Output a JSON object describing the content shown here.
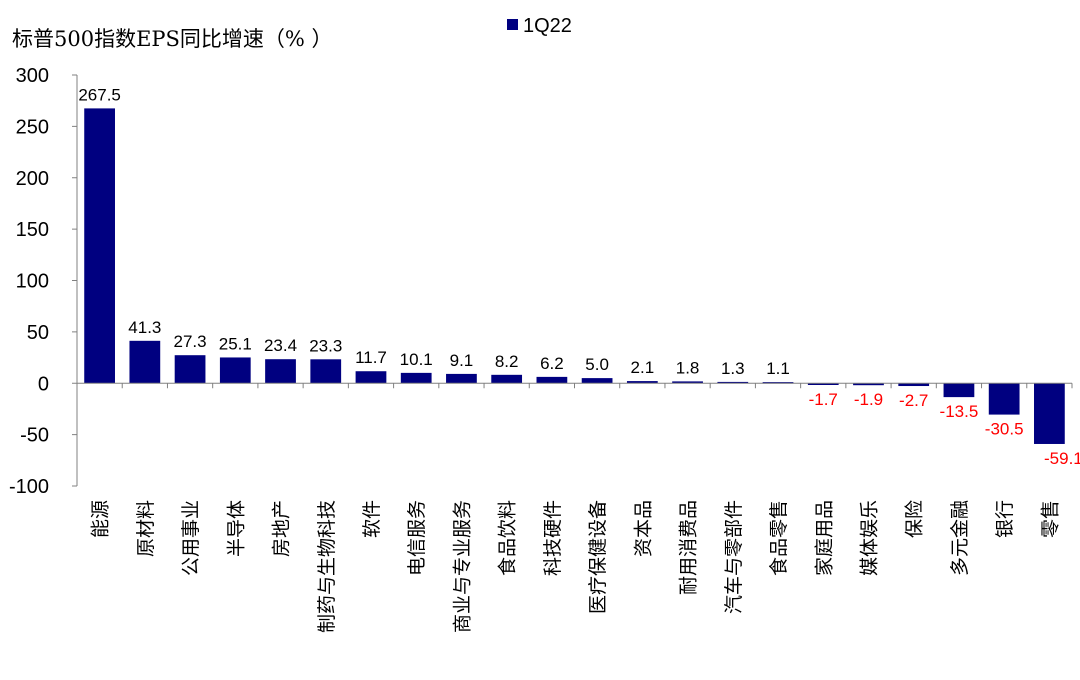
{
  "chart_data": {
    "type": "bar",
    "title": "标普500指数EPS同比增速（% ）",
    "xlabel": "",
    "ylabel": "",
    "ylim": [
      -100,
      300
    ],
    "yticks": [
      "300",
      "250",
      "200",
      "150",
      "100",
      "50",
      "0",
      "-50",
      "-100"
    ],
    "ytick_values": [
      300,
      250,
      200,
      150,
      100,
      50,
      0,
      -50,
      -100
    ],
    "legend": {
      "position": "top-center"
    },
    "grid": false,
    "categories": [
      "能源",
      "原材料",
      "公用事业",
      "半导体",
      "房地产",
      "制药与生物科技",
      "软件",
      "电信服务",
      "商业与专业服务",
      "食品饮料",
      "科技硬件",
      "医疗保健设备",
      "资本品",
      "耐用消费品",
      "汽车与零部件",
      "食品零售",
      "家庭用品",
      "媒体娱乐",
      "保险",
      "多元金融",
      "银行",
      "零售"
    ],
    "series": [
      {
        "name": "1Q22",
        "color": "#000080",
        "values": [
          267.5,
          41.3,
          27.3,
          25.1,
          23.4,
          23.3,
          11.7,
          10.1,
          9.1,
          8.2,
          6.2,
          5.0,
          2.1,
          1.8,
          1.3,
          1.1,
          -1.7,
          -1.9,
          -2.7,
          -13.5,
          -30.5,
          -59.1
        ],
        "labels": [
          "267.5",
          "41.3",
          "27.3",
          "25.1",
          "23.4",
          "23.3",
          "11.7",
          "10.1",
          "9.1",
          "8.2",
          "6.2",
          "5.0",
          "2.1",
          "1.8",
          "1.3",
          "1.1",
          "-1.7",
          "-1.9",
          "-2.7",
          "-13.5",
          "-30.5",
          "-59.1"
        ]
      }
    ],
    "colors": {
      "bar": "#000080",
      "positive_label": "#000000",
      "negative_label": "#ff0000",
      "axis": "#808080"
    }
  }
}
